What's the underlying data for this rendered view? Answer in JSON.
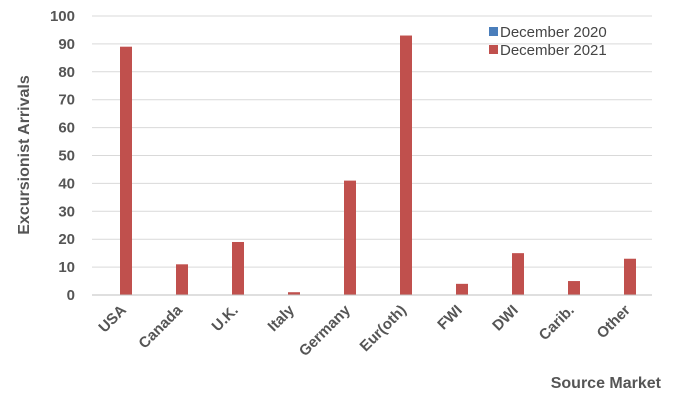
{
  "chart_data": {
    "type": "bar",
    "title": "",
    "xlabel": "Source Market",
    "ylabel": "Excursionist Arrivals",
    "categories": [
      "USA",
      "Canada",
      "U.K.",
      "Italy",
      "Germany",
      "Eur(oth)",
      "FWI",
      "DWI",
      "Carib.",
      "Other"
    ],
    "series": [
      {
        "name": "December 2020",
        "color": "#4a7ebb",
        "values": [
          0,
          0,
          0,
          0,
          0,
          0,
          0,
          0,
          0,
          0
        ]
      },
      {
        "name": "December 2021",
        "color": "#c0504d",
        "values": [
          89,
          11,
          19,
          1,
          41,
          93,
          4,
          15,
          5,
          13
        ]
      }
    ],
    "ylim": [
      0,
      100
    ],
    "yticks": [
      0,
      10,
      20,
      30,
      40,
      50,
      60,
      70,
      80,
      90,
      100
    ],
    "grid": true,
    "legend_position": "top-right"
  }
}
